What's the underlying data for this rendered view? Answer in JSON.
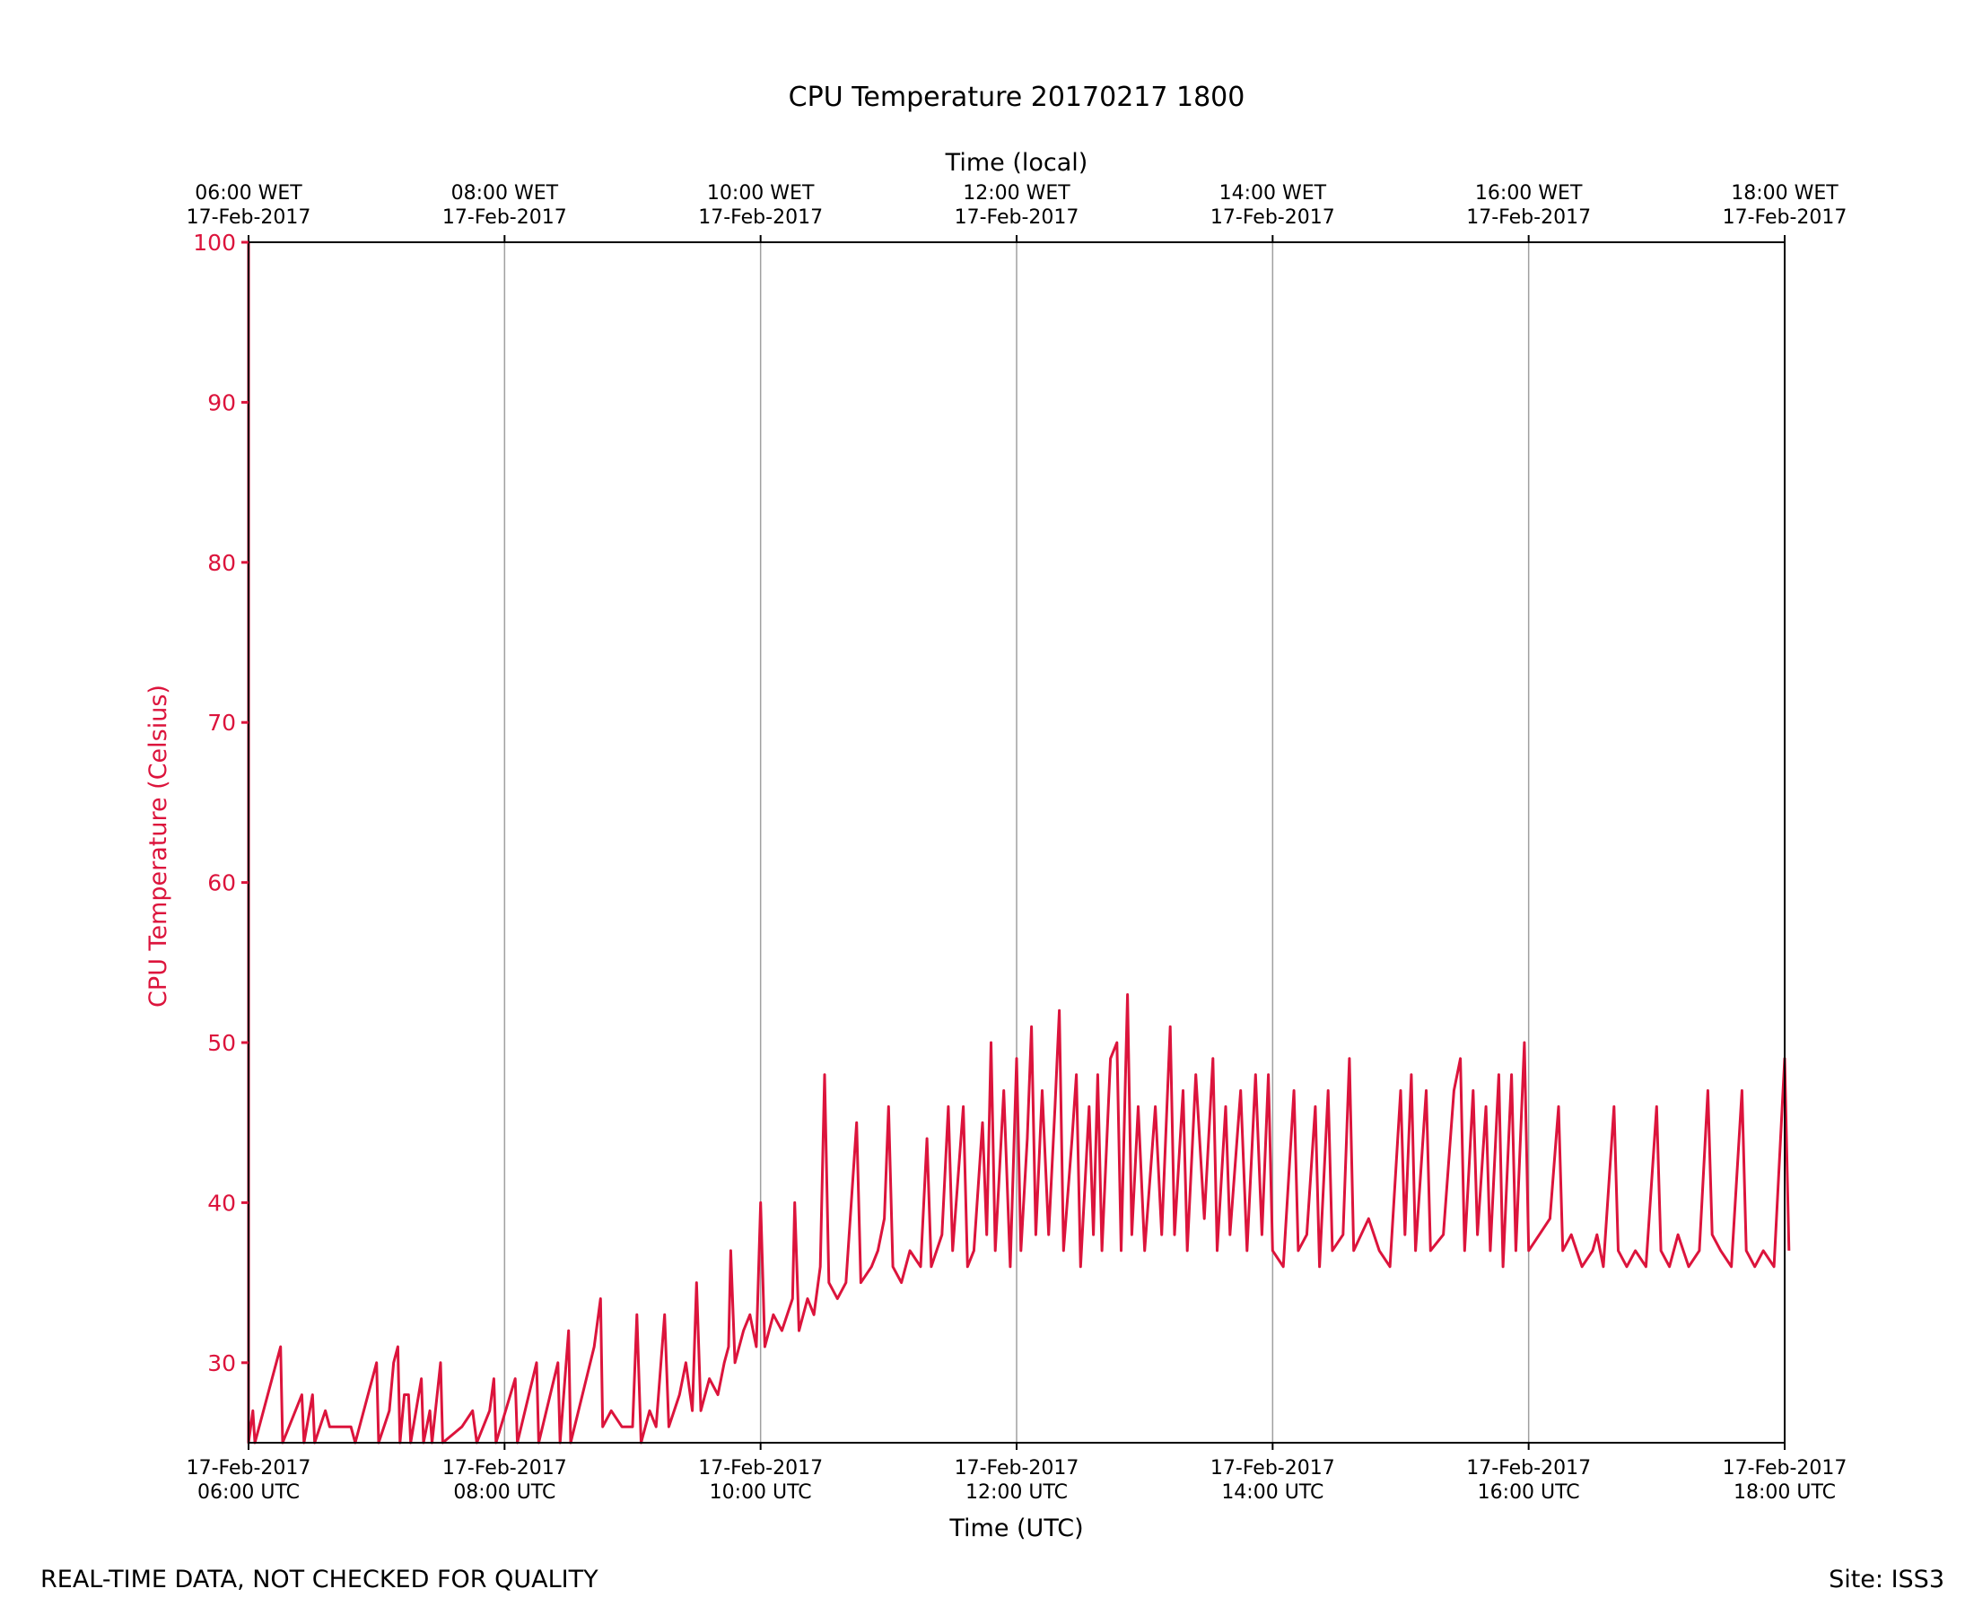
{
  "chart_data": {
    "type": "line",
    "title": "CPU Temperature 20170217 1800",
    "xlabel": "Time (UTC)",
    "xlabel_top": "Time (local)",
    "ylabel": "CPU Temperature (Celsius)",
    "xlim": [
      "2017-02-17T06:00",
      "2017-02-17T18:00"
    ],
    "ylim": [
      25,
      100
    ],
    "x_ticks": [
      {
        "x": "2017-02-17T06:00",
        "date": "17-Feb-2017",
        "time": "06:00 UTC"
      },
      {
        "x": "2017-02-17T08:00",
        "date": "17-Feb-2017",
        "time": "08:00 UTC"
      },
      {
        "x": "2017-02-17T10:00",
        "date": "17-Feb-2017",
        "time": "10:00 UTC"
      },
      {
        "x": "2017-02-17T12:00",
        "date": "17-Feb-2017",
        "time": "12:00 UTC"
      },
      {
        "x": "2017-02-17T14:00",
        "date": "17-Feb-2017",
        "time": "14:00 UTC"
      },
      {
        "x": "2017-02-17T16:00",
        "date": "17-Feb-2017",
        "time": "16:00 UTC"
      },
      {
        "x": "2017-02-17T18:00",
        "date": "17-Feb-2017",
        "time": "18:00 UTC"
      }
    ],
    "x_ticks_top": [
      {
        "time": "06:00 WET",
        "date": "17-Feb-2017"
      },
      {
        "time": "08:00 WET",
        "date": "17-Feb-2017"
      },
      {
        "time": "10:00 WET",
        "date": "17-Feb-2017"
      },
      {
        "time": "12:00 WET",
        "date": "17-Feb-2017"
      },
      {
        "time": "14:00 WET",
        "date": "17-Feb-2017"
      },
      {
        "time": "16:00 WET",
        "date": "17-Feb-2017"
      },
      {
        "time": "18:00 WET",
        "date": "17-Feb-2017"
      }
    ],
    "y_ticks": [
      "30",
      "40",
      "50",
      "60",
      "70",
      "80",
      "90",
      "100"
    ],
    "grid": "vertical major x gridlines",
    "colors": {
      "series": "#dc143c",
      "grid": "#a0a0a0",
      "axes": "#000000"
    },
    "series": [
      {
        "points": [
          [
            "2017-02-17T06:00",
            100
          ],
          [
            "2017-02-17T06:00",
            25
          ],
          [
            "2017-02-17T06:02",
            27
          ],
          [
            "2017-02-17T06:03",
            25
          ],
          [
            "2017-02-17T06:15",
            31
          ],
          [
            "2017-02-17T06:16",
            25
          ],
          [
            "2017-02-17T06:25",
            28
          ],
          [
            "2017-02-17T06:26",
            25
          ],
          [
            "2017-02-17T06:30",
            28
          ],
          [
            "2017-02-17T06:31",
            25
          ],
          [
            "2017-02-17T06:36",
            27
          ],
          [
            "2017-02-17T06:38",
            26
          ],
          [
            "2017-02-17T06:40",
            26
          ],
          [
            "2017-02-17T06:45",
            26
          ],
          [
            "2017-02-17T06:48",
            26
          ],
          [
            "2017-02-17T06:50",
            25
          ],
          [
            "2017-02-17T07:00",
            30
          ],
          [
            "2017-02-17T07:01",
            25
          ],
          [
            "2017-02-17T07:06",
            27
          ],
          [
            "2017-02-17T07:08",
            30
          ],
          [
            "2017-02-17T07:10",
            31
          ],
          [
            "2017-02-17T07:11",
            25
          ],
          [
            "2017-02-17T07:13",
            28
          ],
          [
            "2017-02-17T07:15",
            28
          ],
          [
            "2017-02-17T07:16",
            25
          ],
          [
            "2017-02-17T07:21",
            29
          ],
          [
            "2017-02-17T07:22",
            25
          ],
          [
            "2017-02-17T07:25",
            27
          ],
          [
            "2017-02-17T07:26",
            25
          ],
          [
            "2017-02-17T07:30",
            30
          ],
          [
            "2017-02-17T07:31",
            25
          ],
          [
            "2017-02-17T07:40",
            26
          ],
          [
            "2017-02-17T07:45",
            27
          ],
          [
            "2017-02-17T07:47",
            25
          ],
          [
            "2017-02-17T07:53",
            27
          ],
          [
            "2017-02-17T07:55",
            29
          ],
          [
            "2017-02-17T07:56",
            25
          ],
          [
            "2017-02-17T08:05",
            29
          ],
          [
            "2017-02-17T08:06",
            25
          ],
          [
            "2017-02-17T08:15",
            30
          ],
          [
            "2017-02-17T08:16",
            25
          ],
          [
            "2017-02-17T08:25",
            30
          ],
          [
            "2017-02-17T08:26",
            25
          ],
          [
            "2017-02-17T08:30",
            32
          ],
          [
            "2017-02-17T08:31",
            25
          ],
          [
            "2017-02-17T08:42",
            31
          ],
          [
            "2017-02-17T08:45",
            34
          ],
          [
            "2017-02-17T08:46",
            26
          ],
          [
            "2017-02-17T08:50",
            27
          ],
          [
            "2017-02-17T08:55",
            26
          ],
          [
            "2017-02-17T09:00",
            26
          ],
          [
            "2017-02-17T09:02",
            33
          ],
          [
            "2017-02-17T09:04",
            25
          ],
          [
            "2017-02-17T09:08",
            27
          ],
          [
            "2017-02-17T09:11",
            26
          ],
          [
            "2017-02-17T09:15",
            33
          ],
          [
            "2017-02-17T09:17",
            26
          ],
          [
            "2017-02-17T09:22",
            28
          ],
          [
            "2017-02-17T09:25",
            30
          ],
          [
            "2017-02-17T09:28",
            27
          ],
          [
            "2017-02-17T09:30",
            35
          ],
          [
            "2017-02-17T09:32",
            27
          ],
          [
            "2017-02-17T09:36",
            29
          ],
          [
            "2017-02-17T09:40",
            28
          ],
          [
            "2017-02-17T09:43",
            30
          ],
          [
            "2017-02-17T09:45",
            31
          ],
          [
            "2017-02-17T09:46",
            37
          ],
          [
            "2017-02-17T09:48",
            30
          ],
          [
            "2017-02-17T09:52",
            32
          ],
          [
            "2017-02-17T09:55",
            33
          ],
          [
            "2017-02-17T09:58",
            31
          ],
          [
            "2017-02-17T10:00",
            40
          ],
          [
            "2017-02-17T10:02",
            31
          ],
          [
            "2017-02-17T10:06",
            33
          ],
          [
            "2017-02-17T10:10",
            32
          ],
          [
            "2017-02-17T10:15",
            34
          ],
          [
            "2017-02-17T10:16",
            40
          ],
          [
            "2017-02-17T10:18",
            32
          ],
          [
            "2017-02-17T10:22",
            34
          ],
          [
            "2017-02-17T10:25",
            33
          ],
          [
            "2017-02-17T10:28",
            36
          ],
          [
            "2017-02-17T10:30",
            48
          ],
          [
            "2017-02-17T10:32",
            35
          ],
          [
            "2017-02-17T10:36",
            34
          ],
          [
            "2017-02-17T10:40",
            35
          ],
          [
            "2017-02-17T10:45",
            45
          ],
          [
            "2017-02-17T10:47",
            35
          ],
          [
            "2017-02-17T10:52",
            36
          ],
          [
            "2017-02-17T10:55",
            37
          ],
          [
            "2017-02-17T10:58",
            39
          ],
          [
            "2017-02-17T11:00",
            46
          ],
          [
            "2017-02-17T11:02",
            36
          ],
          [
            "2017-02-17T11:06",
            35
          ],
          [
            "2017-02-17T11:10",
            37
          ],
          [
            "2017-02-17T11:15",
            36
          ],
          [
            "2017-02-17T11:18",
            44
          ],
          [
            "2017-02-17T11:20",
            36
          ],
          [
            "2017-02-17T11:25",
            38
          ],
          [
            "2017-02-17T11:28",
            46
          ],
          [
            "2017-02-17T11:30",
            37
          ],
          [
            "2017-02-17T11:35",
            46
          ],
          [
            "2017-02-17T11:37",
            36
          ],
          [
            "2017-02-17T11:40",
            37
          ],
          [
            "2017-02-17T11:44",
            45
          ],
          [
            "2017-02-17T11:46",
            38
          ],
          [
            "2017-02-17T11:48",
            50
          ],
          [
            "2017-02-17T11:50",
            37
          ],
          [
            "2017-02-17T11:54",
            47
          ],
          [
            "2017-02-17T11:57",
            36
          ],
          [
            "2017-02-17T12:00",
            49
          ],
          [
            "2017-02-17T12:02",
            37
          ],
          [
            "2017-02-17T12:05",
            44
          ],
          [
            "2017-02-17T12:07",
            51
          ],
          [
            "2017-02-17T12:09",
            38
          ],
          [
            "2017-02-17T12:12",
            47
          ],
          [
            "2017-02-17T12:15",
            38
          ],
          [
            "2017-02-17T12:18",
            46
          ],
          [
            "2017-02-17T12:20",
            52
          ],
          [
            "2017-02-17T12:22",
            37
          ],
          [
            "2017-02-17T12:26",
            44
          ],
          [
            "2017-02-17T12:28",
            48
          ],
          [
            "2017-02-17T12:30",
            36
          ],
          [
            "2017-02-17T12:34",
            46
          ],
          [
            "2017-02-17T12:36",
            38
          ],
          [
            "2017-02-17T12:38",
            48
          ],
          [
            "2017-02-17T12:40",
            37
          ],
          [
            "2017-02-17T12:44",
            49
          ],
          [
            "2017-02-17T12:47",
            50
          ],
          [
            "2017-02-17T12:49",
            37
          ],
          [
            "2017-02-17T12:52",
            53
          ],
          [
            "2017-02-17T12:54",
            38
          ],
          [
            "2017-02-17T12:57",
            46
          ],
          [
            "2017-02-17T13:00",
            37
          ],
          [
            "2017-02-17T13:05",
            46
          ],
          [
            "2017-02-17T13:08",
            38
          ],
          [
            "2017-02-17T13:12",
            51
          ],
          [
            "2017-02-17T13:14",
            38
          ],
          [
            "2017-02-17T13:18",
            47
          ],
          [
            "2017-02-17T13:20",
            37
          ],
          [
            "2017-02-17T13:24",
            48
          ],
          [
            "2017-02-17T13:28",
            39
          ],
          [
            "2017-02-17T13:32",
            49
          ],
          [
            "2017-02-17T13:34",
            37
          ],
          [
            "2017-02-17T13:38",
            46
          ],
          [
            "2017-02-17T13:40",
            38
          ],
          [
            "2017-02-17T13:45",
            47
          ],
          [
            "2017-02-17T13:48",
            37
          ],
          [
            "2017-02-17T13:52",
            48
          ],
          [
            "2017-02-17T13:55",
            38
          ],
          [
            "2017-02-17T13:58",
            48
          ],
          [
            "2017-02-17T14:00",
            37
          ],
          [
            "2017-02-17T14:05",
            36
          ],
          [
            "2017-02-17T14:10",
            47
          ],
          [
            "2017-02-17T14:12",
            37
          ],
          [
            "2017-02-17T14:16",
            38
          ],
          [
            "2017-02-17T14:20",
            46
          ],
          [
            "2017-02-17T14:22",
            36
          ],
          [
            "2017-02-17T14:26",
            47
          ],
          [
            "2017-02-17T14:28",
            37
          ],
          [
            "2017-02-17T14:33",
            38
          ],
          [
            "2017-02-17T14:36",
            49
          ],
          [
            "2017-02-17T14:38",
            37
          ],
          [
            "2017-02-17T14:45",
            39
          ],
          [
            "2017-02-17T14:50",
            37
          ],
          [
            "2017-02-17T14:55",
            36
          ],
          [
            "2017-02-17T15:00",
            47
          ],
          [
            "2017-02-17T15:02",
            38
          ],
          [
            "2017-02-17T15:05",
            48
          ],
          [
            "2017-02-17T15:07",
            37
          ],
          [
            "2017-02-17T15:12",
            47
          ],
          [
            "2017-02-17T15:14",
            37
          ],
          [
            "2017-02-17T15:20",
            38
          ],
          [
            "2017-02-17T15:25",
            47
          ],
          [
            "2017-02-17T15:28",
            49
          ],
          [
            "2017-02-17T15:30",
            37
          ],
          [
            "2017-02-17T15:34",
            47
          ],
          [
            "2017-02-17T15:36",
            38
          ],
          [
            "2017-02-17T15:40",
            46
          ],
          [
            "2017-02-17T15:42",
            37
          ],
          [
            "2017-02-17T15:46",
            48
          ],
          [
            "2017-02-17T15:48",
            36
          ],
          [
            "2017-02-17T15:52",
            48
          ],
          [
            "2017-02-17T15:54",
            37
          ],
          [
            "2017-02-17T15:58",
            50
          ],
          [
            "2017-02-17T16:00",
            37
          ],
          [
            "2017-02-17T16:05",
            38
          ],
          [
            "2017-02-17T16:10",
            39
          ],
          [
            "2017-02-17T16:14",
            46
          ],
          [
            "2017-02-17T16:16",
            37
          ],
          [
            "2017-02-17T16:20",
            38
          ],
          [
            "2017-02-17T16:25",
            36
          ],
          [
            "2017-02-17T16:30",
            37
          ],
          [
            "2017-02-17T16:32",
            38
          ],
          [
            "2017-02-17T16:35",
            36
          ],
          [
            "2017-02-17T16:40",
            46
          ],
          [
            "2017-02-17T16:42",
            37
          ],
          [
            "2017-02-17T16:46",
            36
          ],
          [
            "2017-02-17T16:50",
            37
          ],
          [
            "2017-02-17T16:55",
            36
          ],
          [
            "2017-02-17T17:00",
            46
          ],
          [
            "2017-02-17T17:02",
            37
          ],
          [
            "2017-02-17T17:06",
            36
          ],
          [
            "2017-02-17T17:10",
            38
          ],
          [
            "2017-02-17T17:15",
            36
          ],
          [
            "2017-02-17T17:20",
            37
          ],
          [
            "2017-02-17T17:24",
            47
          ],
          [
            "2017-02-17T17:26",
            38
          ],
          [
            "2017-02-17T17:30",
            37
          ],
          [
            "2017-02-17T17:35",
            36
          ],
          [
            "2017-02-17T17:40",
            47
          ],
          [
            "2017-02-17T17:42",
            37
          ],
          [
            "2017-02-17T17:46",
            36
          ],
          [
            "2017-02-17T17:50",
            37
          ],
          [
            "2017-02-17T17:55",
            36
          ],
          [
            "2017-02-17T18:00",
            49
          ],
          [
            "2017-02-17T18:02",
            37
          ]
        ]
      }
    ],
    "footer_left": "REAL-TIME DATA, NOT CHECKED FOR QUALITY",
    "footer_right": "Site: ISS3"
  }
}
